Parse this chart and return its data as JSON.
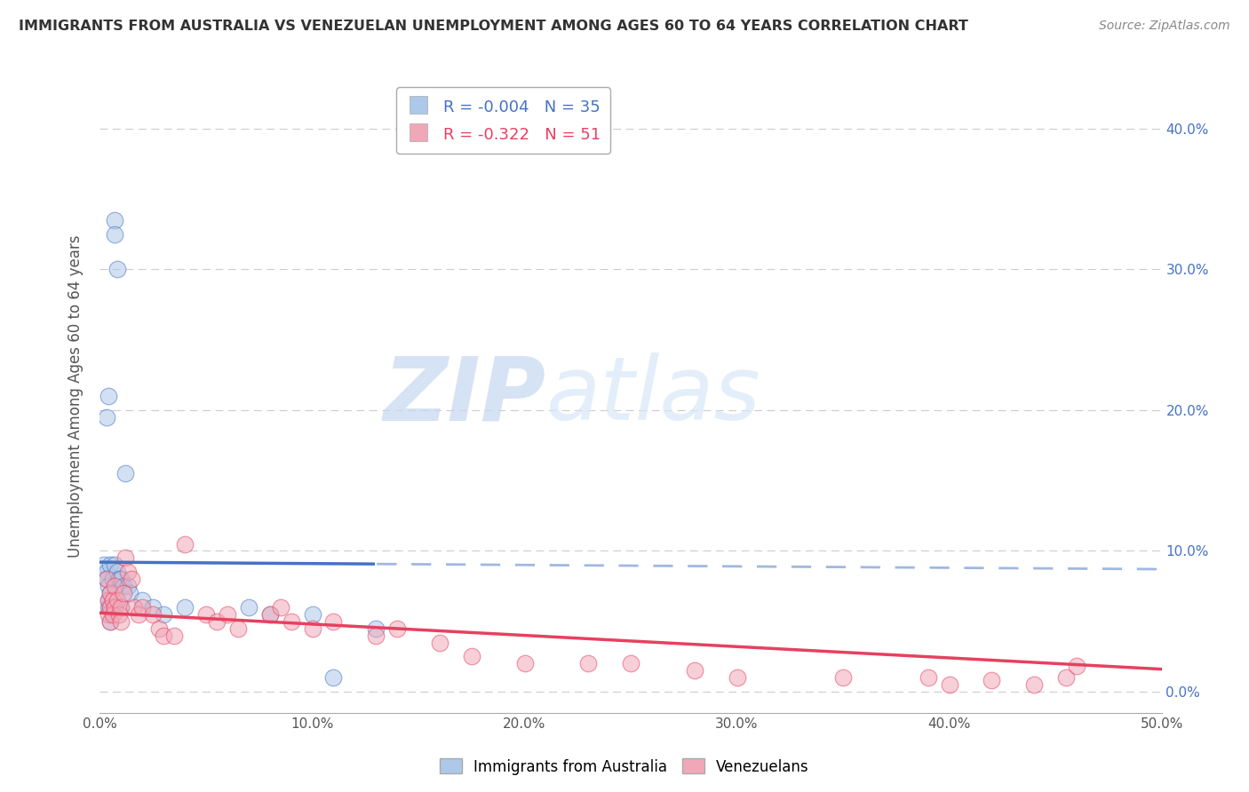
{
  "title": "IMMIGRANTS FROM AUSTRALIA VS VENEZUELAN UNEMPLOYMENT AMONG AGES 60 TO 64 YEARS CORRELATION CHART",
  "source": "Source: ZipAtlas.com",
  "ylabel": "Unemployment Among Ages 60 to 64 years",
  "legend": [
    {
      "label": "R = -0.004   N = 35",
      "color": "#a8c8f0"
    },
    {
      "label": "R = -0.322   N = 51",
      "color": "#f0a8b8"
    }
  ],
  "xlim": [
    0.0,
    0.5
  ],
  "ylim": [
    -0.015,
    0.435
  ],
  "aus_x": [
    0.002,
    0.003,
    0.003,
    0.004,
    0.004,
    0.004,
    0.005,
    0.005,
    0.005,
    0.005,
    0.006,
    0.006,
    0.007,
    0.007,
    0.007,
    0.008,
    0.008,
    0.009,
    0.01,
    0.01,
    0.011,
    0.012,
    0.013,
    0.014,
    0.02,
    0.025,
    0.03,
    0.04,
    0.07,
    0.08,
    0.1,
    0.11,
    0.13,
    0.003,
    0.004
  ],
  "aus_y": [
    0.09,
    0.085,
    0.08,
    0.075,
    0.065,
    0.06,
    0.09,
    0.07,
    0.06,
    0.05,
    0.08,
    0.065,
    0.335,
    0.325,
    0.09,
    0.3,
    0.085,
    0.08,
    0.08,
    0.06,
    0.075,
    0.155,
    0.075,
    0.07,
    0.065,
    0.06,
    0.055,
    0.06,
    0.06,
    0.055,
    0.055,
    0.01,
    0.045,
    0.195,
    0.21
  ],
  "ven_x": [
    0.003,
    0.004,
    0.004,
    0.005,
    0.005,
    0.005,
    0.006,
    0.006,
    0.007,
    0.007,
    0.008,
    0.009,
    0.01,
    0.01,
    0.011,
    0.012,
    0.013,
    0.015,
    0.016,
    0.018,
    0.02,
    0.025,
    0.028,
    0.03,
    0.035,
    0.04,
    0.05,
    0.055,
    0.06,
    0.065,
    0.08,
    0.085,
    0.09,
    0.1,
    0.11,
    0.13,
    0.14,
    0.16,
    0.175,
    0.2,
    0.23,
    0.25,
    0.28,
    0.3,
    0.35,
    0.39,
    0.4,
    0.42,
    0.44,
    0.455,
    0.46
  ],
  "ven_y": [
    0.08,
    0.065,
    0.055,
    0.07,
    0.06,
    0.05,
    0.065,
    0.055,
    0.075,
    0.06,
    0.065,
    0.055,
    0.06,
    0.05,
    0.07,
    0.095,
    0.085,
    0.08,
    0.06,
    0.055,
    0.06,
    0.055,
    0.045,
    0.04,
    0.04,
    0.105,
    0.055,
    0.05,
    0.055,
    0.045,
    0.055,
    0.06,
    0.05,
    0.045,
    0.05,
    0.04,
    0.045,
    0.035,
    0.025,
    0.02,
    0.02,
    0.02,
    0.015,
    0.01,
    0.01,
    0.01,
    0.005,
    0.008,
    0.005,
    0.01,
    0.018
  ],
  "australia_line_color": "#4472c4",
  "australia_line_color_dash": "#a0b8e0",
  "venezuela_line_color": "#e84060",
  "australia_dot_color": "#adc8e8",
  "venezuela_dot_color": "#f0a8b8",
  "background_color": "#ffffff",
  "grid_color": "#cccccc",
  "title_color": "#333333",
  "source_color": "#888888",
  "watermark_zip": "ZIP",
  "watermark_atlas": "atlas",
  "watermark_color": "#d0dff0"
}
